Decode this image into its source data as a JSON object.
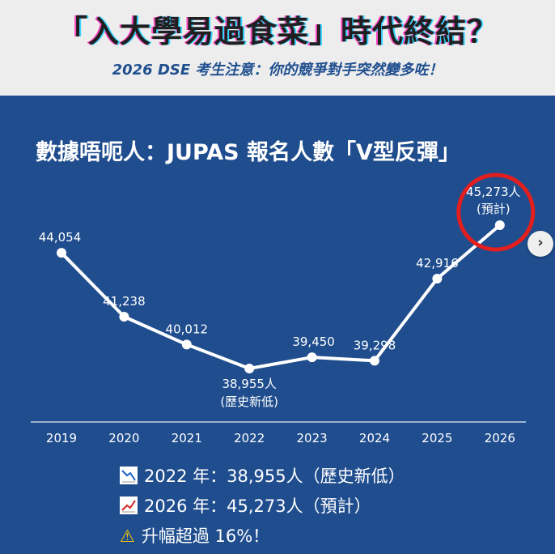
{
  "header": {
    "title": "「入大學易過食菜」時代終結？",
    "subtitle": "2026 DSE 考生注意：你的競爭對手突然變多咗！"
  },
  "chart_data": {
    "type": "line",
    "title": "數據唔呃人：JUPAS 報名人數「V型反彈」",
    "x": [
      "2019",
      "2020",
      "2021",
      "2022",
      "2023",
      "2024",
      "2025",
      "2026"
    ],
    "series": [
      {
        "values": [
          44054,
          41238,
          40012,
          38955,
          39450,
          39298,
          42916,
          45273
        ]
      }
    ],
    "data_labels": [
      "44,054",
      "41,238",
      "40,012",
      "38,955人",
      "39,450",
      "39,298",
      "42,916",
      "45,273人"
    ],
    "annotations": [
      {
        "x": "2022",
        "text": "(歷史新低)"
      },
      {
        "x": "2026",
        "text": "(預計)"
      }
    ],
    "line_color": "#ffffff",
    "highlight_color": "#e31e1e",
    "ylim": [
      38500,
      45500
    ],
    "grid": false
  },
  "stats": [
    {
      "icon": "chart-decreasing-icon",
      "text": "2022 年：38,955人（歷史新低）"
    },
    {
      "icon": "chart-increasing-icon",
      "text": "2026 年：45,273人（預計）"
    },
    {
      "icon": "warning-icon",
      "text": "升幅超過 16%！"
    }
  ],
  "nav": {
    "next_icon": "›"
  }
}
